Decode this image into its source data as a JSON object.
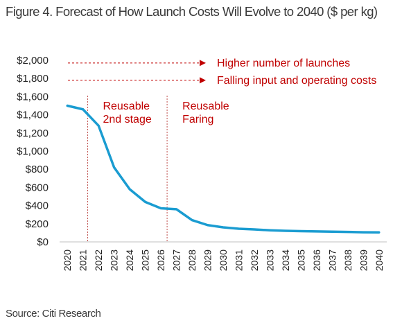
{
  "title": "Figure 4. Forecast of How Launch Costs Will Evolve to 2040 ($ per kg)",
  "source": "Source: Citi Research",
  "chart_data": {
    "type": "line",
    "title": "Figure 4. Forecast of How Launch Costs Will Evolve to 2040 ($ per kg)",
    "xlabel": "",
    "ylabel": "",
    "x": [
      "2020",
      "2021",
      "2022",
      "2023",
      "2024",
      "2025",
      "2026",
      "2027",
      "2028",
      "2029",
      "2030",
      "2031",
      "2032",
      "2033",
      "2034",
      "2035",
      "2036",
      "2037",
      "2038",
      "2039",
      "2040"
    ],
    "series": [
      {
        "values": [
          1500,
          1460,
          1280,
          820,
          580,
          440,
          370,
          360,
          240,
          185,
          160,
          145,
          137,
          128,
          122,
          118,
          115,
          113,
          110,
          106,
          105
        ],
        "color": "#1a9cd1"
      }
    ],
    "ylim": [
      0,
      2000
    ],
    "yticks": [
      0,
      200,
      400,
      600,
      800,
      1000,
      1200,
      1400,
      1600,
      1800,
      2000
    ],
    "ytick_labels": [
      "$0",
      "$200",
      "$400",
      "$600",
      "$800",
      "$1,000",
      "$1,200",
      "$1,400",
      "$1,600",
      "$1,800",
      "$2,000"
    ],
    "grid": false,
    "legend": "none",
    "vlines": [
      {
        "x": 2021.3,
        "label_lines": [
          "Reusable",
          "2nd stage"
        ]
      },
      {
        "x": 2026.4,
        "label_lines": [
          "Reusable",
          "Faring"
        ]
      }
    ],
    "arrows": [
      {
        "y": 1970,
        "label": "Higher number of launches"
      },
      {
        "y": 1780,
        "label": "Falling input and operating costs"
      }
    ],
    "annotation_color": "#c00000"
  }
}
